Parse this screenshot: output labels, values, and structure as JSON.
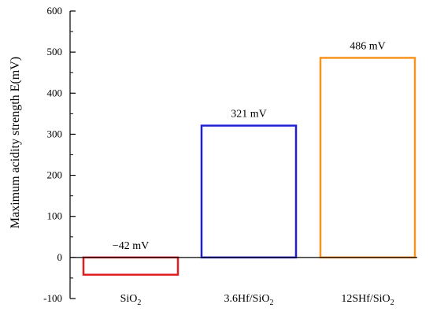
{
  "chart_data": {
    "type": "bar",
    "categories": [
      {
        "label": "SiO",
        "sub": "2"
      },
      {
        "label": "3.6Hf/SiO",
        "sub": "2"
      },
      {
        "label": "12SHf/SiO",
        "sub": "2"
      }
    ],
    "values": [
      -42,
      321,
      486
    ],
    "data_labels": [
      "−42 mV",
      "321 mV",
      "486 mV"
    ],
    "bar_colors": [
      "#e02020",
      "#1f1fd8",
      "#f7931e"
    ],
    "title": "",
    "xlabel": "",
    "ylabel": "Maximum acidity strength E(mV)",
    "ylim": [
      -100,
      600
    ],
    "yticks": [
      -100,
      0,
      100,
      200,
      300,
      400,
      500,
      600
    ],
    "grid": false,
    "legend": "none"
  }
}
